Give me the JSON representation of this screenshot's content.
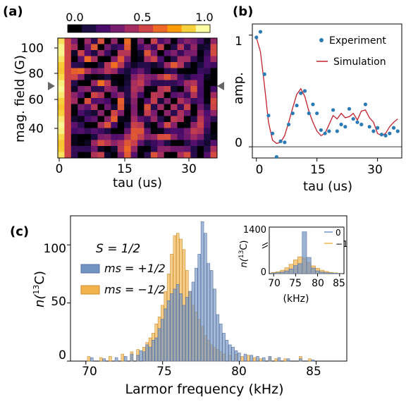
{
  "panels": {
    "a": {
      "label": "(a)",
      "xlabel": "tau (us)",
      "ylabel": "mag. field (G)",
      "xticks": [
        "0",
        "15",
        "30"
      ],
      "yticks": [
        "100",
        "80",
        "60",
        "40"
      ],
      "colorbar_ticks": [
        "0.0",
        "0.5",
        "1.0"
      ]
    },
    "b": {
      "label": "(b)",
      "xlabel": "tau (us)",
      "ylabel": "amp.",
      "xticks": [
        "0",
        "15",
        "30"
      ],
      "yticks": [
        "1",
        "0"
      ],
      "legend": [
        "Experiment",
        "Simulation"
      ]
    },
    "c": {
      "label": "(c)",
      "xlabel": "Larmor frequency (kHz)",
      "ylabel_main": "n(",
      "ylabel_sup": "13",
      "ylabel_tail": "C)",
      "xticks": [
        "70",
        "75",
        "80",
        "85"
      ],
      "yticks": [
        "100",
        "50",
        "0"
      ],
      "spin_label": "S = 1/2",
      "legend_up": "ms = +1/2",
      "legend_down": "ms = −1/2",
      "inset": {
        "xlabel": "(kHz)",
        "ylabel_main": "n(",
        "ylabel_sup": "13",
        "ylabel_tail": "C)",
        "xticks": [
          "70",
          "75",
          "80",
          "85"
        ],
        "yticks": [
          "1400",
          "0"
        ],
        "legend": [
          "0",
          "−1"
        ]
      }
    }
  },
  "colors": {
    "experiment": "#2a7ab5",
    "simulation": "#c0202c",
    "ms_up": "#7393c2",
    "ms_down": "#f2b24c",
    "colormap": [
      "#000004",
      "#1b0c41",
      "#4a0c6b",
      "#781c6d",
      "#a52c60",
      "#cf4446",
      "#ed6925",
      "#fb9b06",
      "#f7d13d",
      "#fcffa4"
    ]
  },
  "chart_data": [
    {
      "type": "heatmap",
      "panel": "a",
      "xlabel": "tau (us)",
      "ylabel": "mag. field (G)",
      "xlim": [
        0,
        36
      ],
      "ylim": [
        30,
        105
      ],
      "colorbar": [
        0.0,
        1.0
      ],
      "description_of_pattern": "bright column near tau=0; revival bands whose tau decreases with field"
    },
    {
      "type": "scatter",
      "panel": "b",
      "xlabel": "tau (us)",
      "ylabel": "amp.",
      "xlim": [
        -1,
        36
      ],
      "ylim": [
        -0.1,
        1.1
      ],
      "series": [
        {
          "name": "Experiment",
          "x": [
            0,
            1,
            2,
            3,
            4,
            5,
            6,
            7,
            8,
            9,
            10,
            11,
            12,
            13,
            14,
            15,
            16,
            17,
            18,
            19,
            20,
            21,
            22,
            23,
            24,
            25,
            26,
            27,
            28,
            29,
            30,
            31,
            32,
            33,
            34,
            35
          ],
          "y": [
            0.98,
            1.03,
            0.65,
            0.28,
            0.12,
            -0.09,
            0.05,
            0.04,
            0.2,
            0.3,
            0.37,
            0.48,
            0.5,
            0.3,
            0.38,
            0.3,
            0.15,
            0.12,
            0.14,
            0.33,
            0.14,
            0.2,
            0.18,
            0.34,
            0.25,
            0.22,
            0.2,
            0.38,
            0.18,
            0.14,
            0.17,
            0.11,
            0.1,
            0.12,
            0.17,
            0.14
          ]
        },
        {
          "name": "Simulation",
          "x": [
            0,
            1,
            2,
            3,
            4,
            5,
            6,
            7,
            8,
            9,
            10,
            11,
            12,
            13,
            14,
            15,
            16,
            17,
            18,
            19,
            20,
            21,
            22,
            23,
            24,
            25,
            26,
            27,
            28,
            29,
            30,
            31,
            32,
            33,
            34,
            35
          ],
          "y": [
            0.98,
            0.85,
            0.55,
            0.22,
            0.06,
            0.03,
            0.04,
            0.1,
            0.22,
            0.35,
            0.47,
            0.52,
            0.45,
            0.32,
            0.22,
            0.14,
            0.1,
            0.12,
            0.2,
            0.28,
            0.25,
            0.3,
            0.26,
            0.27,
            0.3,
            0.24,
            0.32,
            0.33,
            0.26,
            0.22,
            0.12,
            0.1,
            0.12,
            0.18,
            0.22,
            0.25
          ]
        }
      ]
    },
    {
      "type": "bar",
      "panel": "c",
      "xlabel": "Larmor frequency (kHz)",
      "xlim": [
        69,
        87
      ],
      "ylim": [
        0,
        125
      ],
      "bin_width": 0.2,
      "series": [
        {
          "name": "ms = +1/2",
          "x": [
            70.4,
            71.2,
            72.0,
            72.6,
            73.0,
            73.4,
            73.6,
            73.8,
            74.0,
            74.2,
            74.4,
            74.6,
            74.8,
            75.0,
            75.2,
            75.4,
            75.6,
            75.8,
            76.0,
            76.2,
            76.4,
            76.6,
            76.8,
            77.0,
            77.2,
            77.4,
            77.6,
            77.8,
            78.0,
            78.2,
            78.4,
            78.6,
            78.8,
            79.0,
            79.2,
            79.4,
            79.6,
            79.8,
            80.0,
            80.4,
            80.8,
            81.2,
            81.6,
            82.0,
            82.6,
            83.2,
            84.0,
            84.8
          ],
          "values": [
            3,
            2,
            3,
            4,
            6,
            5,
            9,
            8,
            14,
            12,
            18,
            20,
            28,
            36,
            45,
            52,
            58,
            62,
            66,
            58,
            48,
            55,
            60,
            68,
            80,
            92,
            120,
            110,
            84,
            78,
            62,
            40,
            32,
            24,
            18,
            14,
            12,
            9,
            7,
            6,
            5,
            4,
            3,
            4,
            3,
            2,
            2,
            1
          ]
        },
        {
          "name": "ms = −1/2",
          "x": [
            70.2,
            71.0,
            71.6,
            72.4,
            73.0,
            73.4,
            73.8,
            74.0,
            74.2,
            74.4,
            74.6,
            74.8,
            75.0,
            75.2,
            75.4,
            75.6,
            75.8,
            76.0,
            76.2,
            76.4,
            76.6,
            76.8,
            77.0,
            77.2,
            77.4,
            77.6,
            77.8,
            78.0,
            78.2,
            78.4,
            78.6,
            78.8,
            79.0,
            79.4,
            79.8,
            80.2,
            80.6,
            81.0,
            81.4,
            82.0,
            82.4,
            83.0,
            84.0,
            84.6
          ],
          "values": [
            4,
            3,
            4,
            6,
            8,
            10,
            12,
            16,
            20,
            24,
            32,
            38,
            48,
            60,
            75,
            92,
            108,
            110,
            105,
            96,
            78,
            60,
            48,
            42,
            36,
            30,
            22,
            18,
            14,
            12,
            10,
            8,
            6,
            5,
            6,
            4,
            5,
            3,
            2,
            3,
            2,
            2,
            4,
            2
          ]
        }
      ]
    },
    {
      "type": "bar",
      "panel": "c-inset",
      "xlabel": "(kHz)",
      "xlim": [
        69,
        86
      ],
      "ylim": [
        0,
        1400
      ],
      "bin_width": 1,
      "series": [
        {
          "name": "0",
          "x": [
            70,
            71,
            72,
            73,
            74,
            75,
            76,
            77,
            78,
            79,
            80,
            81,
            82,
            83,
            84,
            85
          ],
          "values": [
            20,
            30,
            50,
            90,
            150,
            260,
            320,
            1340,
            520,
            180,
            90,
            50,
            30,
            20,
            12,
            8
          ]
        },
        {
          "name": "−1",
          "x": [
            70,
            71,
            72,
            73,
            74,
            75,
            76,
            77,
            78,
            79,
            80,
            81,
            82,
            83,
            84,
            85
          ],
          "values": [
            40,
            60,
            110,
            190,
            300,
            440,
            540,
            500,
            360,
            250,
            170,
            110,
            70,
            40,
            25,
            12
          ]
        }
      ]
    }
  ]
}
